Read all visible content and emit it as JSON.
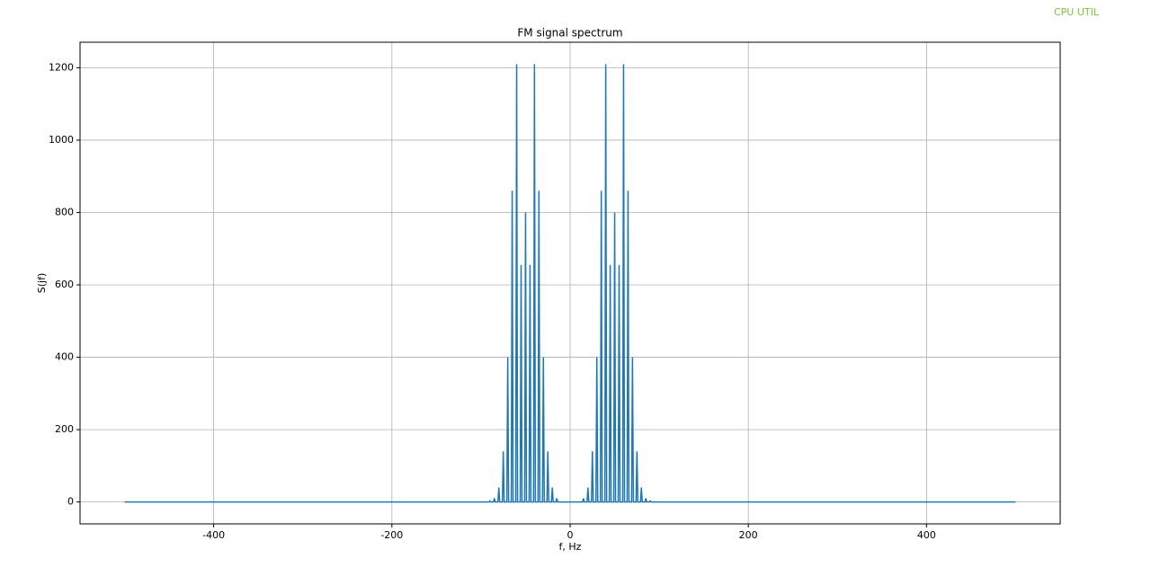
{
  "overlay_label": "CPU UTIL",
  "chart_data": {
    "type": "line",
    "title": "FM signal spectrum",
    "x_label": "f, Hz",
    "y_label": "S(jf)",
    "x": [
      -500,
      -91,
      -90,
      -89,
      -86,
      -85,
      -84,
      -81,
      -80,
      -79,
      -76,
      -75,
      -74,
      -71,
      -70,
      -69,
      -66,
      -65,
      -64,
      -61,
      -60,
      -59,
      -56,
      -55,
      -54,
      -51,
      -50,
      -49,
      -46,
      -45,
      -44,
      -41,
      -40,
      -39,
      -36,
      -35,
      -34,
      -31,
      -30,
      -29,
      -26,
      -25,
      -24,
      -21,
      -20,
      -19,
      -16,
      -15,
      -14,
      14,
      15,
      16,
      19,
      20,
      21,
      24,
      25,
      26,
      29,
      30,
      31,
      34,
      35,
      36,
      39,
      40,
      41,
      44,
      45,
      46,
      49,
      50,
      51,
      54,
      55,
      56,
      59,
      60,
      61,
      64,
      65,
      66,
      69,
      70,
      71,
      74,
      75,
      76,
      79,
      80,
      81,
      84,
      85,
      86,
      89,
      90,
      91,
      500
    ],
    "series": [
      {
        "color": "#1f77b4",
        "values": [
          0,
          0,
          3,
          0,
          0,
          10,
          0,
          0,
          40,
          0,
          0,
          140,
          0,
          0,
          400,
          0,
          0,
          860,
          0,
          0,
          1210,
          0,
          0,
          655,
          0,
          0,
          800,
          0,
          0,
          655,
          0,
          0,
          1210,
          0,
          0,
          860,
          0,
          0,
          400,
          0,
          0,
          140,
          0,
          0,
          40,
          0,
          0,
          10,
          0,
          0,
          10,
          0,
          0,
          40,
          0,
          0,
          140,
          0,
          0,
          400,
          0,
          0,
          860,
          0,
          0,
          1210,
          0,
          0,
          655,
          0,
          0,
          800,
          0,
          0,
          655,
          0,
          0,
          1210,
          0,
          0,
          860,
          0,
          0,
          400,
          0,
          0,
          140,
          0,
          0,
          40,
          0,
          0,
          10,
          0,
          0,
          3,
          0,
          0
        ]
      }
    ],
    "xlim": [
      -550,
      550
    ],
    "xticks": [
      -400,
      -200,
      0,
      200,
      400
    ],
    "ylim": [
      -60.5,
      1270.5
    ],
    "yticks": [
      0,
      200,
      400,
      600,
      800,
      1000,
      1200
    ],
    "grid": true
  }
}
